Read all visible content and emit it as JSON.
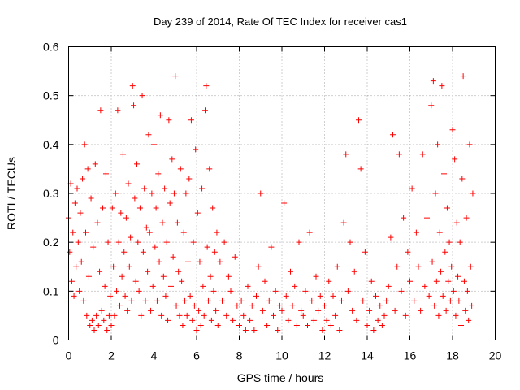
{
  "chart_data": {
    "type": "scatter",
    "title": "Day 239 of 2014, Rate Of TEC Index for receiver cas1",
    "xlabel": "GPS time / hours",
    "ylabel": "ROTI / TECUs",
    "xlim": [
      0,
      20
    ],
    "ylim": [
      0,
      0.6
    ],
    "xticks": [
      0,
      2,
      4,
      6,
      8,
      10,
      12,
      14,
      16,
      18,
      20
    ],
    "xtick_labels": [
      "0",
      "2",
      "4",
      "6",
      "8",
      "10",
      "12",
      "14",
      "16",
      "18",
      "20"
    ],
    "yticks": [
      0,
      0.1,
      0.2,
      0.3,
      0.4,
      0.5,
      0.6
    ],
    "ytick_labels": [
      "0",
      "0.1",
      "0.2",
      "0.3",
      "0.4",
      "0.5",
      "0.6"
    ],
    "grid": true,
    "marker": "+",
    "color": "#ff0000",
    "series": [
      {
        "name": "ROTI",
        "points": [
          [
            0.0,
            0.25
          ],
          [
            0.05,
            0.18
          ],
          [
            0.1,
            0.32
          ],
          [
            0.15,
            0.12
          ],
          [
            0.2,
            0.22
          ],
          [
            0.25,
            0.09
          ],
          [
            0.3,
            0.28
          ],
          [
            0.35,
            0.15
          ],
          [
            0.4,
            0.31
          ],
          [
            0.45,
            0.2
          ],
          [
            0.5,
            0.1
          ],
          [
            0.55,
            0.26
          ],
          [
            0.6,
            0.16
          ],
          [
            0.65,
            0.33
          ],
          [
            0.7,
            0.08
          ],
          [
            0.75,
            0.4
          ],
          [
            0.8,
            0.22
          ],
          [
            0.85,
            0.05
          ],
          [
            0.9,
            0.35
          ],
          [
            0.95,
            0.13
          ],
          [
            1.0,
            0.03
          ],
          [
            1.05,
            0.29
          ],
          [
            1.1,
            0.04
          ],
          [
            1.15,
            0.19
          ],
          [
            1.2,
            0.02
          ],
          [
            1.25,
            0.36
          ],
          [
            1.3,
            0.05
          ],
          [
            1.35,
            0.24
          ],
          [
            1.4,
            0.03
          ],
          [
            1.45,
            0.14
          ],
          [
            1.5,
            0.47
          ],
          [
            1.55,
            0.06
          ],
          [
            1.6,
            0.27
          ],
          [
            1.65,
            0.04
          ],
          [
            1.7,
            0.11
          ],
          [
            1.75,
            0.34
          ],
          [
            1.8,
            0.02
          ],
          [
            1.85,
            0.2
          ],
          [
            1.9,
            0.05
          ],
          [
            1.95,
            0.09
          ],
          [
            2.0,
            0.03
          ],
          [
            2.05,
            0.27
          ],
          [
            2.1,
            0.15
          ],
          [
            2.15,
            0.05
          ],
          [
            2.2,
            0.3
          ],
          [
            2.25,
            0.1
          ],
          [
            2.3,
            0.47
          ],
          [
            2.35,
            0.2
          ],
          [
            2.4,
            0.07
          ],
          [
            2.45,
            0.26
          ],
          [
            2.5,
            0.13
          ],
          [
            2.55,
            0.38
          ],
          [
            2.6,
            0.18
          ],
          [
            2.65,
            0.09
          ],
          [
            2.7,
            0.25
          ],
          [
            2.75,
            0.06
          ],
          [
            2.8,
            0.32
          ],
          [
            2.85,
            0.15
          ],
          [
            2.9,
            0.21
          ],
          [
            2.95,
            0.08
          ],
          [
            3.0,
            0.52
          ],
          [
            3.05,
            0.48
          ],
          [
            3.1,
            0.29
          ],
          [
            3.15,
            0.12
          ],
          [
            3.2,
            0.36
          ],
          [
            3.25,
            0.2
          ],
          [
            3.3,
            0.1
          ],
          [
            3.35,
            0.27
          ],
          [
            3.4,
            0.05
          ],
          [
            3.45,
            0.5
          ],
          [
            3.5,
            0.18
          ],
          [
            3.55,
            0.31
          ],
          [
            3.6,
            0.08
          ],
          [
            3.65,
            0.23
          ],
          [
            3.7,
            0.14
          ],
          [
            3.75,
            0.42
          ],
          [
            3.8,
            0.22
          ],
          [
            3.85,
            0.06
          ],
          [
            3.9,
            0.3
          ],
          [
            3.95,
            0.11
          ],
          [
            4.0,
            0.4
          ],
          [
            4.05,
            0.19
          ],
          [
            4.1,
            0.27
          ],
          [
            4.15,
            0.08
          ],
          [
            4.2,
            0.34
          ],
          [
            4.25,
            0.16
          ],
          [
            4.3,
            0.46
          ],
          [
            4.35,
            0.05
          ],
          [
            4.4,
            0.24
          ],
          [
            4.45,
            0.13
          ],
          [
            4.5,
            0.31
          ],
          [
            4.55,
            0.09
          ],
          [
            4.6,
            0.2
          ],
          [
            4.65,
            0.04
          ],
          [
            4.7,
            0.45
          ],
          [
            4.75,
            0.28
          ],
          [
            4.8,
            0.11
          ],
          [
            4.85,
            0.37
          ],
          [
            4.9,
            0.17
          ],
          [
            4.95,
            0.3
          ],
          [
            5.0,
            0.54
          ],
          [
            5.05,
            0.07
          ],
          [
            5.1,
            0.24
          ],
          [
            5.15,
            0.14
          ],
          [
            5.2,
            0.05
          ],
          [
            5.25,
            0.35
          ],
          [
            5.3,
            0.12
          ],
          [
            5.35,
            0.03
          ],
          [
            5.4,
            0.22
          ],
          [
            5.45,
            0.08
          ],
          [
            5.5,
            0.3
          ],
          [
            5.55,
            0.05
          ],
          [
            5.6,
            0.16
          ],
          [
            5.65,
            0.33
          ],
          [
            5.7,
            0.09
          ],
          [
            5.75,
            0.45
          ],
          [
            5.8,
            0.04
          ],
          [
            5.85,
            0.2
          ],
          [
            5.9,
            0.07
          ],
          [
            5.95,
            0.39
          ],
          [
            6.0,
            0.02
          ],
          [
            6.05,
            0.26
          ],
          [
            6.1,
            0.06
          ],
          [
            6.15,
            0.16
          ],
          [
            6.2,
            0.03
          ],
          [
            6.25,
            0.31
          ],
          [
            6.3,
            0.11
          ],
          [
            6.35,
            0.05
          ],
          [
            6.4,
            0.47
          ],
          [
            6.45,
            0.52
          ],
          [
            6.5,
            0.19
          ],
          [
            6.55,
            0.08
          ],
          [
            6.6,
            0.35
          ],
          [
            6.65,
            0.13
          ],
          [
            6.7,
            0.04
          ],
          [
            6.75,
            0.27
          ],
          [
            6.8,
            0.1
          ],
          [
            6.85,
            0.18
          ],
          [
            6.9,
            0.06
          ],
          [
            6.95,
            0.22
          ],
          [
            7.0,
            0.03
          ],
          [
            7.1,
            0.16
          ],
          [
            7.2,
            0.08
          ],
          [
            7.3,
            0.2
          ],
          [
            7.4,
            0.05
          ],
          [
            7.5,
            0.13
          ],
          [
            7.6,
            0.1
          ],
          [
            7.7,
            0.04
          ],
          [
            7.8,
            0.17
          ],
          [
            7.9,
            0.07
          ],
          [
            8.0,
            0.03
          ],
          [
            8.1,
            0.08
          ],
          [
            8.2,
            0.05
          ],
          [
            8.3,
            0.02
          ],
          [
            8.4,
            0.11
          ],
          [
            8.5,
            0.04
          ],
          [
            8.6,
            0.07
          ],
          [
            8.7,
            0.02
          ],
          [
            8.8,
            0.09
          ],
          [
            8.9,
            0.15
          ],
          [
            9.0,
            0.3
          ],
          [
            9.1,
            0.06
          ],
          [
            9.2,
            0.12
          ],
          [
            9.3,
            0.03
          ],
          [
            9.4,
            0.08
          ],
          [
            9.5,
            0.19
          ],
          [
            9.6,
            0.05
          ],
          [
            9.7,
            0.1
          ],
          [
            9.8,
            0.02
          ],
          [
            9.9,
            0.07
          ],
          [
            10.0,
            0.06
          ],
          [
            10.1,
            0.28
          ],
          [
            10.2,
            0.09
          ],
          [
            10.3,
            0.04
          ],
          [
            10.4,
            0.14
          ],
          [
            10.5,
            0.07
          ],
          [
            10.6,
            0.11
          ],
          [
            10.7,
            0.03
          ],
          [
            10.8,
            0.2
          ],
          [
            10.9,
            0.06
          ],
          [
            11.0,
            0.05
          ],
          [
            11.1,
            0.1
          ],
          [
            11.2,
            0.03
          ],
          [
            11.3,
            0.22
          ],
          [
            11.4,
            0.08
          ],
          [
            11.5,
            0.04
          ],
          [
            11.6,
            0.13
          ],
          [
            11.7,
            0.06
          ],
          [
            11.8,
            0.09
          ],
          [
            11.9,
            0.02
          ],
          [
            12.0,
            0.07
          ],
          [
            12.1,
            0.04
          ],
          [
            12.2,
            0.12
          ],
          [
            12.3,
            0.03
          ],
          [
            12.4,
            0.09
          ],
          [
            12.5,
            0.05
          ],
          [
            12.6,
            0.15
          ],
          [
            12.7,
            0.02
          ],
          [
            12.8,
            0.08
          ],
          [
            12.9,
            0.24
          ],
          [
            13.0,
            0.38
          ],
          [
            13.1,
            0.1
          ],
          [
            13.2,
            0.2
          ],
          [
            13.3,
            0.06
          ],
          [
            13.4,
            0.14
          ],
          [
            13.5,
            0.04
          ],
          [
            13.6,
            0.45
          ],
          [
            13.7,
            0.35
          ],
          [
            13.8,
            0.08
          ],
          [
            13.9,
            0.18
          ],
          [
            14.0,
            0.03
          ],
          [
            14.1,
            0.06
          ],
          [
            14.2,
            0.12
          ],
          [
            14.3,
            0.02
          ],
          [
            14.4,
            0.09
          ],
          [
            14.5,
            0.04
          ],
          [
            14.6,
            0.07
          ],
          [
            14.7,
            0.03
          ],
          [
            14.8,
            0.05
          ],
          [
            14.9,
            0.08
          ],
          [
            15.0,
            0.11
          ],
          [
            15.1,
            0.21
          ],
          [
            15.2,
            0.42
          ],
          [
            15.3,
            0.06
          ],
          [
            15.4,
            0.15
          ],
          [
            15.5,
            0.38
          ],
          [
            15.6,
            0.1
          ],
          [
            15.7,
            0.25
          ],
          [
            15.8,
            0.05
          ],
          [
            15.9,
            0.18
          ],
          [
            16.0,
            0.12
          ],
          [
            16.1,
            0.31
          ],
          [
            16.2,
            0.08
          ],
          [
            16.3,
            0.22
          ],
          [
            16.4,
            0.15
          ],
          [
            16.5,
            0.06
          ],
          [
            16.6,
            0.38
          ],
          [
            16.7,
            0.11
          ],
          [
            16.8,
            0.25
          ],
          [
            16.9,
            0.09
          ],
          [
            17.0,
            0.48
          ],
          [
            17.05,
            0.16
          ],
          [
            17.1,
            0.53
          ],
          [
            17.15,
            0.07
          ],
          [
            17.2,
            0.3
          ],
          [
            17.25,
            0.12
          ],
          [
            17.3,
            0.4
          ],
          [
            17.35,
            0.05
          ],
          [
            17.4,
            0.22
          ],
          [
            17.45,
            0.14
          ],
          [
            17.5,
            0.52
          ],
          [
            17.55,
            0.09
          ],
          [
            17.6,
            0.34
          ],
          [
            17.65,
            0.18
          ],
          [
            17.7,
            0.06
          ],
          [
            17.75,
            0.27
          ],
          [
            17.8,
            0.12
          ],
          [
            17.85,
            0.2
          ],
          [
            17.9,
            0.08
          ],
          [
            17.95,
            0.15
          ],
          [
            18.0,
            0.43
          ],
          [
            18.05,
            0.1
          ],
          [
            18.1,
            0.37
          ],
          [
            18.15,
            0.05
          ],
          [
            18.2,
            0.24
          ],
          [
            18.25,
            0.13
          ],
          [
            18.3,
            0.08
          ],
          [
            18.35,
            0.2
          ],
          [
            18.4,
            0.03
          ],
          [
            18.45,
            0.33
          ],
          [
            18.5,
            0.54
          ],
          [
            18.55,
            0.12
          ],
          [
            18.6,
            0.06
          ],
          [
            18.65,
            0.25
          ],
          [
            18.7,
            0.1
          ],
          [
            18.75,
            0.04
          ],
          [
            18.8,
            0.4
          ],
          [
            18.85,
            0.15
          ],
          [
            18.9,
            0.07
          ],
          [
            18.95,
            0.3
          ]
        ]
      }
    ]
  }
}
